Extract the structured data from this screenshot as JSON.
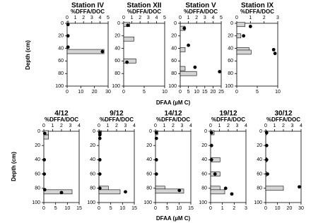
{
  "figure_labels": {
    "y_label": "Depth (cm)",
    "x_label": "DFAA (µM C)"
  },
  "chart_data": [
    {
      "type": "depth-profile",
      "title": "Station IV",
      "x2_label": "%DFFA/DOC",
      "ylim": [
        0,
        100
      ],
      "yticks": [
        0,
        20,
        40,
        60,
        80,
        100
      ],
      "xlim": [
        0,
        30
      ],
      "xticks": [
        0,
        10,
        20,
        30
      ],
      "x2lim": [
        0,
        5
      ],
      "x2ticks": [
        0,
        1,
        2,
        3,
        4,
        5
      ],
      "bars": {
        "color": "#d4d4d4",
        "depth": [
          0,
          45
        ],
        "values": [
          1,
          27
        ]
      },
      "dots": {
        "color": "#000000",
        "depth": [
          2,
          20,
          38,
          45
        ],
        "values": [
          0.1,
          0.1,
          0.1,
          4.3
        ]
      }
    },
    {
      "type": "depth-profile",
      "title": "Station XII",
      "x2_label": "%DFFA/DOC",
      "ylim": [
        0,
        100
      ],
      "yticks": [
        0,
        20,
        40,
        60,
        80,
        100
      ],
      "xlim": [
        0,
        10
      ],
      "xticks": [
        0,
        5,
        10
      ],
      "x2lim": [
        0,
        5
      ],
      "x2ticks": [
        0,
        1,
        2,
        3,
        4,
        5
      ],
      "bars": {
        "color": "#d4d4d4",
        "depth": [
          2,
          25,
          60
        ],
        "values": [
          1.5,
          2.5,
          3
        ]
      },
      "dots": {
        "color": "#000000",
        "depth": [
          3,
          62
        ],
        "values": [
          0.5,
          0.4
        ]
      }
    },
    {
      "type": "depth-profile",
      "title": "Station V",
      "x2_label": "%DFFA/DOC",
      "ylim": [
        0,
        100
      ],
      "yticks": [
        0,
        20,
        40,
        60,
        80,
        100
      ],
      "xlim": [
        0,
        25
      ],
      "xticks": [
        0,
        5,
        10,
        15,
        20,
        25
      ],
      "x2lim": [
        0,
        5
      ],
      "x2ticks": [
        0,
        1,
        2,
        3,
        4,
        5
      ],
      "bars": {
        "color": "#d4d4d4",
        "depth": [
          8,
          42,
          72,
          80
        ],
        "values": [
          3,
          3,
          3,
          10
        ]
      },
      "dots": {
        "color": "#000000",
        "depth": [
          8,
          35,
          70,
          77
        ],
        "values": [
          0.5,
          1,
          1.8,
          4.8
        ]
      }
    },
    {
      "type": "depth-profile",
      "title": "Station IX",
      "x2_label": "%DFFA/DOC",
      "ylim": [
        0,
        100
      ],
      "yticks": [
        0,
        20,
        40,
        60,
        80,
        100
      ],
      "xlim": [
        0,
        10
      ],
      "xticks": [
        0,
        5,
        10
      ],
      "x2lim": [
        0,
        3
      ],
      "x2ticks": [
        0,
        1,
        2,
        3
      ],
      "bars": {
        "color": "#d4d4d4",
        "depth": [
          2,
          20,
          42,
          46
        ],
        "values": [
          2,
          1,
          3,
          3.5
        ]
      },
      "dots": {
        "color": "#000000",
        "depth": [
          5,
          20,
          42,
          48
        ],
        "values": [
          1,
          0.5,
          2.7,
          2.8
        ]
      }
    },
    {
      "type": "depth-profile",
      "title": "4/12",
      "x2_label": "%DFFA/DOC",
      "ylim": [
        0,
        100
      ],
      "yticks": [
        0,
        20,
        40,
        60,
        80,
        100
      ],
      "xlim": [
        0,
        15
      ],
      "xticks": [
        0,
        5,
        10,
        15
      ],
      "x2lim": [
        0,
        4
      ],
      "x2ticks": [
        0,
        1,
        2,
        3,
        4
      ],
      "bars": {
        "color": "#d4d4d4",
        "depth": [
          2,
          8,
          85
        ],
        "values": [
          2,
          2,
          12
        ]
      },
      "dots": {
        "color": "#000000",
        "depth": [
          3,
          40,
          60,
          82,
          86
        ],
        "values": [
          0.1,
          0.05,
          0.05,
          0.1,
          2
        ]
      }
    },
    {
      "type": "depth-profile",
      "title": "9/12",
      "x2_label": "%DFFA/DOC",
      "ylim": [
        0,
        100
      ],
      "yticks": [
        0,
        20,
        40,
        60,
        80,
        100
      ],
      "xlim": [
        0,
        15
      ],
      "xticks": [
        0,
        5,
        10,
        15
      ],
      "x2lim": [
        0,
        4
      ],
      "x2ticks": [
        0,
        1,
        2,
        3,
        4
      ],
      "bars": {
        "color": "#d4d4d4",
        "depth": [
          2,
          80,
          85
        ],
        "values": [
          1,
          4,
          9
        ]
      },
      "dots": {
        "color": "#000000",
        "depth": [
          2,
          5,
          10,
          40,
          60,
          80,
          85
        ],
        "values": [
          0.1,
          0.1,
          0.1,
          0.1,
          0.1,
          0.1,
          3
        ]
      }
    },
    {
      "type": "depth-profile",
      "title": "14/12",
      "x2_label": "%DFFA/DOC",
      "ylim": [
        0,
        100
      ],
      "yticks": [
        0,
        20,
        40,
        60,
        80,
        100
      ],
      "xlim": [
        0,
        15
      ],
      "xticks": [
        0,
        5,
        10,
        15
      ],
      "x2lim": [
        0,
        4
      ],
      "x2ticks": [
        0,
        1,
        2,
        3,
        4
      ],
      "bars": {
        "color": "#d4d4d4",
        "depth": [
          2,
          80,
          84
        ],
        "values": [
          1,
          4,
          12
        ]
      },
      "dots": {
        "color": "#000000",
        "depth": [
          2,
          10,
          40,
          60,
          83
        ],
        "values": [
          0.1,
          0.1,
          0.1,
          0.1,
          2.7
        ]
      }
    },
    {
      "type": "depth-profile",
      "title": "19/12",
      "x2_label": "%DFFA/DOC",
      "ylim": [
        0,
        100
      ],
      "yticks": [
        0,
        20,
        40,
        60,
        80,
        100
      ],
      "xlim": [
        0,
        3
      ],
      "xticks": [
        0,
        1,
        2,
        3
      ],
      "x2lim": [
        0,
        4
      ],
      "x2ticks": [
        0,
        1,
        2,
        3,
        4
      ],
      "bars": {
        "color": "#d4d4d4",
        "depth": [
          2,
          40,
          60,
          80,
          85
        ],
        "values": [
          0.3,
          0.8,
          0.8,
          0.8,
          1.2
        ]
      },
      "dots": {
        "color": "#000000",
        "depth": [
          2,
          20,
          40,
          60,
          80,
          88
        ],
        "values": [
          0.1,
          0.1,
          0.1,
          0.5,
          1.7,
          2.4
        ]
      }
    },
    {
      "type": "depth-profile",
      "title": "30/12",
      "x2_label": "%DFFA/DOC",
      "ylim": [
        0,
        100
      ],
      "yticks": [
        0,
        20,
        40,
        60,
        80,
        100
      ],
      "xlim": [
        0,
        30
      ],
      "xticks": [
        0,
        10,
        20,
        30
      ],
      "x2lim": [
        0,
        4
      ],
      "x2ticks": [
        0,
        1,
        2,
        3,
        4
      ],
      "bars": {
        "color": "#d4d4d4",
        "depth": [
          2,
          40,
          60,
          80
        ],
        "values": [
          1,
          1,
          1,
          15
        ]
      },
      "dots": {
        "color": "#000000",
        "depth": [
          2,
          20,
          40,
          60,
          78
        ],
        "values": [
          0.1,
          0.1,
          0.1,
          0.2,
          3.8
        ]
      }
    }
  ]
}
